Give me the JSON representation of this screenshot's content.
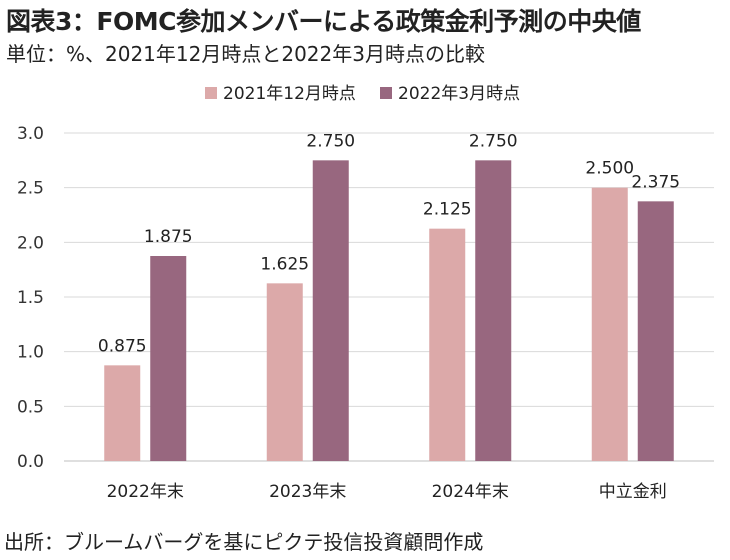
{
  "title": "図表3：FOMC参加メンバーによる政策金利予測の中央値",
  "subtitle": "単位：%、2021年12月時点と2022年3月時点の比較",
  "source": "出所：ブルームバーグを基にピクテ投信投資顧問作成",
  "colors": {
    "series1": "#dca9a9",
    "series2": "#98677f",
    "grid": "#d9d9d9",
    "axis": "#bfbfbf"
  },
  "chart_data": {
    "type": "bar",
    "categories": [
      "2022年末",
      "2023年末",
      "2024年末",
      "中立金利"
    ],
    "series": [
      {
        "name": "2021年12月時点",
        "values": [
          0.875,
          1.625,
          2.125,
          2.5
        ],
        "labels": [
          "0.875",
          "1.625",
          "2.125",
          "2.500"
        ]
      },
      {
        "name": "2022年3月時点",
        "values": [
          1.875,
          2.75,
          2.75,
          2.375
        ],
        "labels": [
          "1.875",
          "2.750",
          "2.750",
          "2.375"
        ]
      }
    ],
    "ylim": [
      0,
      3.0
    ],
    "yticks": [
      "0.0",
      "0.5",
      "1.0",
      "1.5",
      "2.0",
      "2.5",
      "3.0"
    ],
    "grid": true,
    "legend": "top-center"
  }
}
